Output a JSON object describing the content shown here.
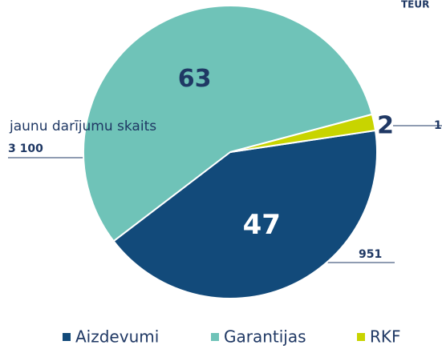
{
  "chart_data": {
    "type": "pie",
    "categories": [
      "Aizdevumi",
      "Garantijas",
      "RKF"
    ],
    "values": [
      47,
      63,
      2
    ],
    "colors": [
      "#124a7a",
      "#6fc3b8",
      "#c8d400"
    ],
    "legend": "bottom",
    "annotations": [
      "jaunu darījumu skaits",
      "3 100",
      "951",
      "1",
      "TEUR"
    ]
  }
}
